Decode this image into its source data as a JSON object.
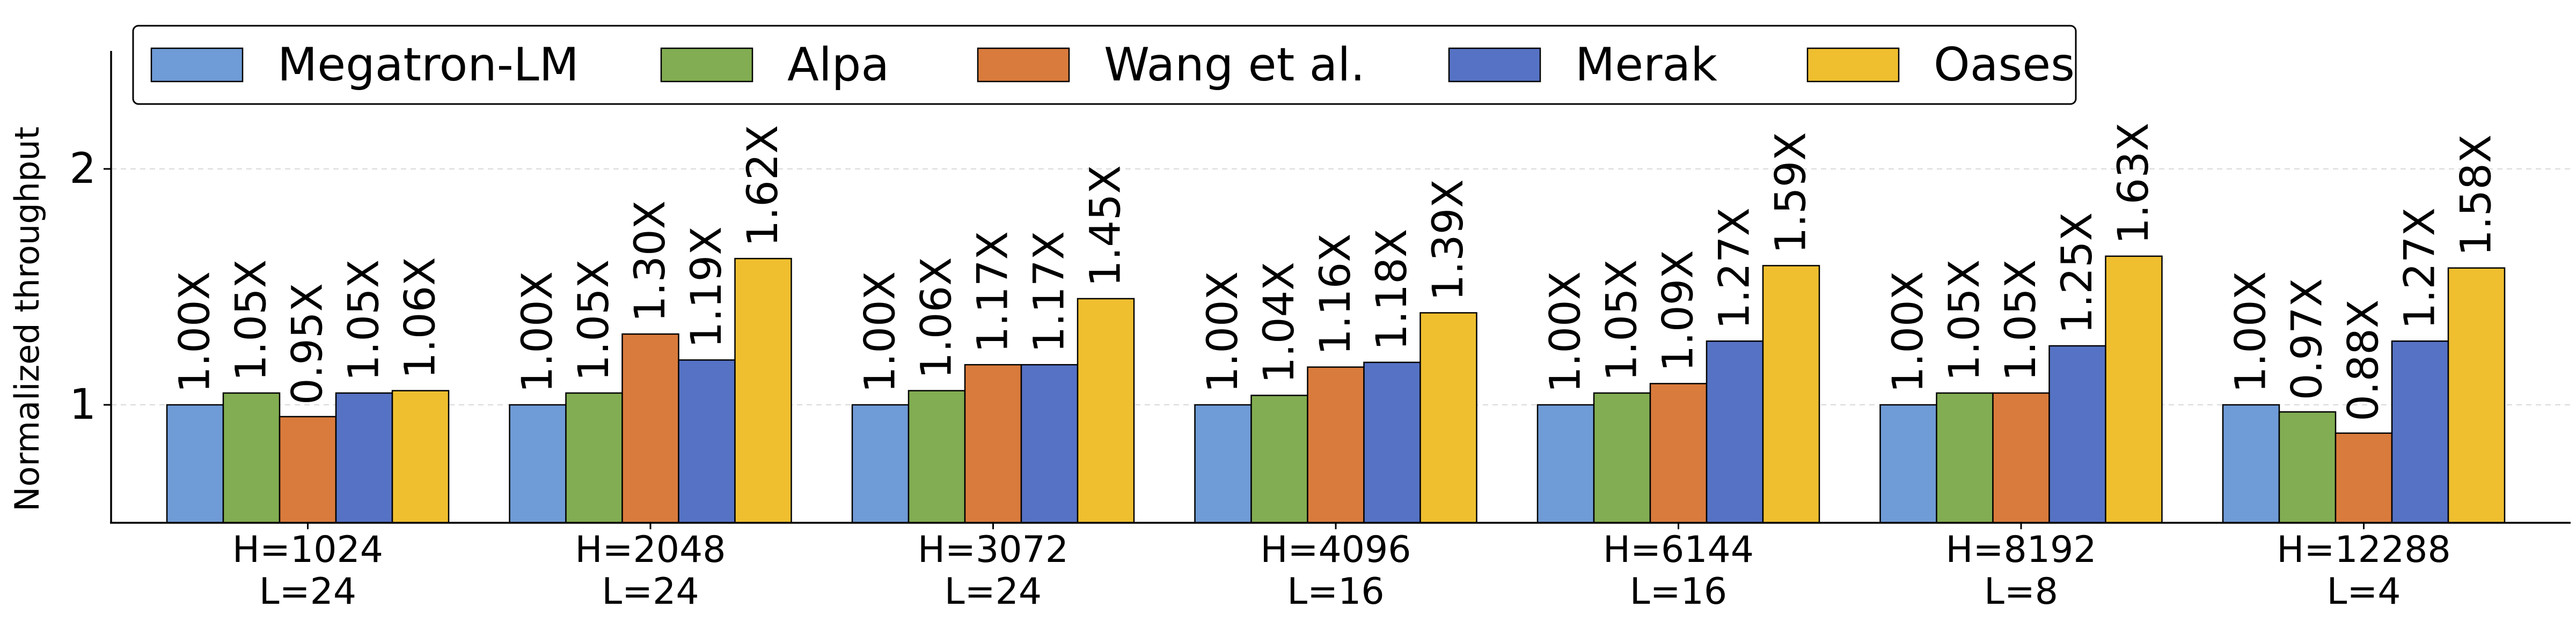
{
  "chart_data": {
    "type": "bar",
    "ylabel": "Normalized throughput",
    "xlabel": "",
    "ylim": [
      0.5,
      2.5
    ],
    "yticks": [
      1,
      2
    ],
    "grid": "horizontal-dashed",
    "legend_position": "top-left",
    "categories": [
      [
        "H=1024",
        "L=24"
      ],
      [
        "H=2048",
        "L=24"
      ],
      [
        "H=3072",
        "L=24"
      ],
      [
        "H=4096",
        "L=16"
      ],
      [
        "H=6144",
        "L=16"
      ],
      [
        "H=8192",
        "L=8"
      ],
      [
        "H=12288",
        "L=4"
      ]
    ],
    "series": [
      {
        "name": "Megatron-LM",
        "color": "#6f9bd6",
        "values": [
          1.0,
          1.0,
          1.0,
          1.0,
          1.0,
          1.0,
          1.0
        ],
        "labels": [
          "1.00X",
          "1.00X",
          "1.00X",
          "1.00X",
          "1.00X",
          "1.00X",
          "1.00X"
        ]
      },
      {
        "name": "Alpa",
        "color": "#82ad52",
        "values": [
          1.05,
          1.05,
          1.06,
          1.04,
          1.05,
          1.05,
          0.97
        ],
        "labels": [
          "1.05X",
          "1.05X",
          "1.06X",
          "1.04X",
          "1.05X",
          "1.05X",
          "0.97X"
        ]
      },
      {
        "name": "Wang et al.",
        "color": "#d97b3c",
        "values": [
          0.95,
          1.3,
          1.17,
          1.16,
          1.09,
          1.05,
          0.88
        ],
        "labels": [
          "0.95X",
          "1.30X",
          "1.17X",
          "1.16X",
          "1.09X",
          "1.05X",
          "0.88X"
        ]
      },
      {
        "name": "Merak",
        "color": "#5572c4",
        "values": [
          1.05,
          1.19,
          1.17,
          1.18,
          1.27,
          1.25,
          1.27
        ],
        "labels": [
          "1.05X",
          "1.19X",
          "1.17X",
          "1.18X",
          "1.27X",
          "1.25X",
          "1.27X"
        ]
      },
      {
        "name": "Oases",
        "color": "#efbf2f",
        "values": [
          1.06,
          1.62,
          1.45,
          1.39,
          1.59,
          1.63,
          1.58
        ],
        "labels": [
          "1.06X",
          "1.62X",
          "1.45X",
          "1.39X",
          "1.59X",
          "1.63X",
          "1.58X"
        ]
      }
    ]
  }
}
